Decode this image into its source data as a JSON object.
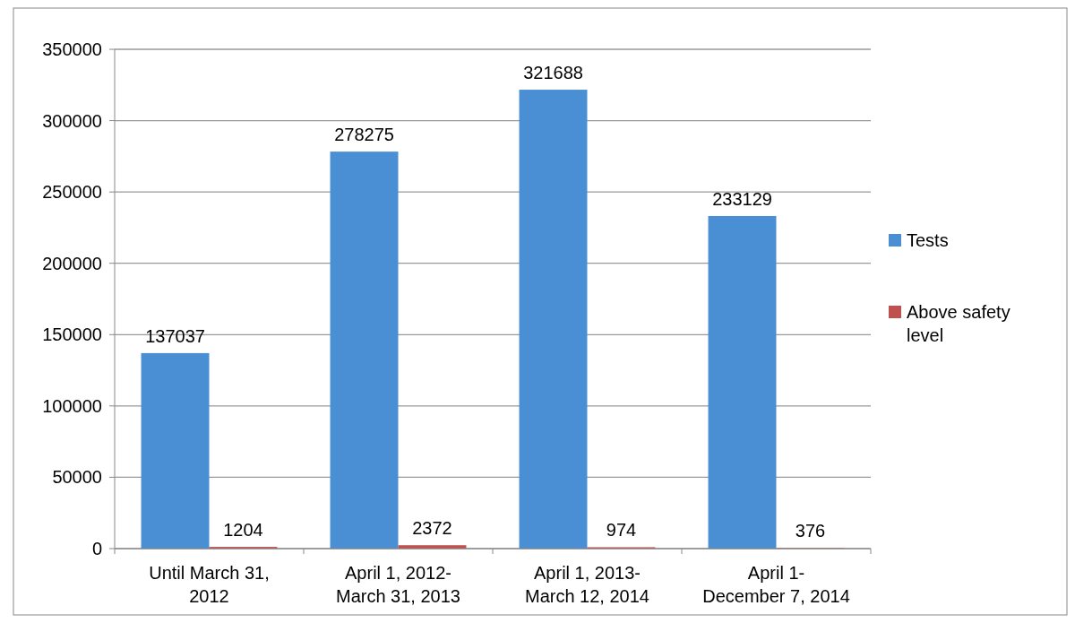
{
  "chart_data": {
    "type": "bar",
    "categories": [
      "Until March 31, 2012",
      "April 1, 2012-March 31, 2013",
      "April 1, 2013-March 12, 2014",
      "April 1-December 7, 2014"
    ],
    "series": [
      {
        "name": "Tests",
        "color": "#4a8fd4",
        "values": [
          137037,
          278275,
          321688,
          233129
        ]
      },
      {
        "name": "Above safety level",
        "color": "#c0504d",
        "values": [
          1204,
          2372,
          974,
          376
        ]
      }
    ],
    "ylim": [
      0,
      350000
    ],
    "yticks": [
      0,
      50000,
      100000,
      150000,
      200000,
      250000,
      300000,
      350000
    ],
    "grid": "y",
    "legend": "right",
    "data_labels": true
  }
}
